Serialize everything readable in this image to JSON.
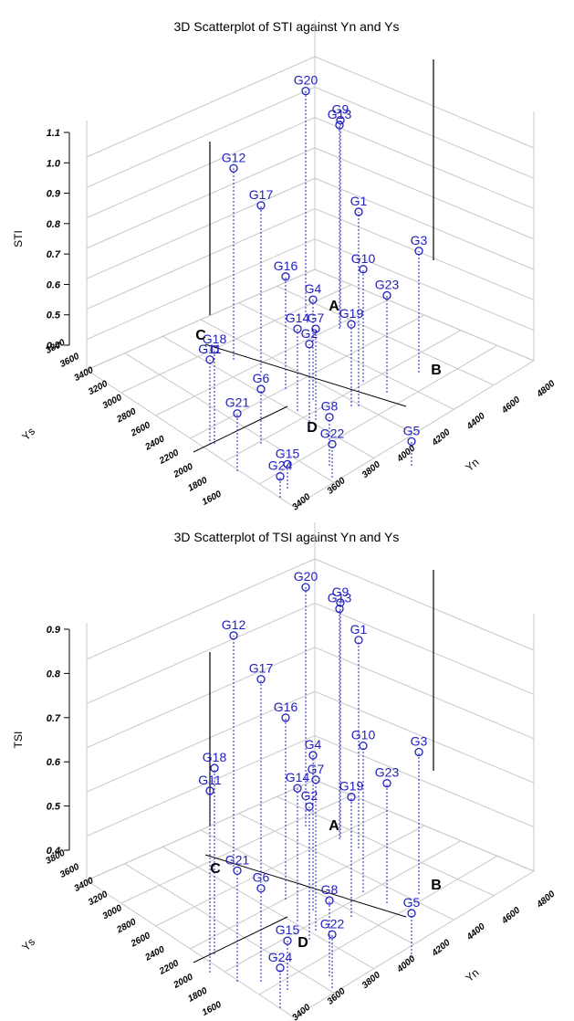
{
  "colors": {
    "point": "#2020c0",
    "grid": "#c8c8c8",
    "axis": "#000000",
    "text": "#000000"
  },
  "chart_data": [
    {
      "type": "scatter3d",
      "title": "3D Scatterplot of STI against Yn and Ys",
      "zlabel": "STI",
      "xlabel": "Yn",
      "ylabel": "Ys",
      "zticks": [
        "0.4",
        "0.5",
        "0.6",
        "0.7",
        "0.8",
        "0.9",
        "1.0",
        "1.1"
      ],
      "xticks": [
        "3400",
        "3600",
        "3800",
        "4000",
        "4200",
        "4400",
        "4600",
        "4800"
      ],
      "yticks": [
        "1600",
        "1800",
        "2000",
        "2200",
        "2400",
        "2600",
        "2800",
        "3000",
        "3200",
        "3400",
        "3600",
        "3800"
      ],
      "zlim": [
        0.4,
        1.1
      ],
      "xlim": [
        3400,
        4800
      ],
      "ylim": [
        1600,
        3800
      ],
      "quadrant_labels": [
        "A",
        "B",
        "C",
        "D"
      ],
      "points": [
        {
          "label": "G1",
          "z": 0.98
        },
        {
          "label": "G2",
          "z": 0.62
        },
        {
          "label": "G3",
          "z": 0.74
        },
        {
          "label": "G4",
          "z": 0.67
        },
        {
          "label": "G5",
          "z": 0.42
        },
        {
          "label": "G6",
          "z": 0.52
        },
        {
          "label": "G7",
          "z": 0.64
        },
        {
          "label": "G8",
          "z": 0.5
        },
        {
          "label": "G9",
          "z": 1.02
        },
        {
          "label": "G10",
          "z": 0.71
        },
        {
          "label": "G11",
          "z": 0.62
        },
        {
          "label": "G12",
          "z": 0.97
        },
        {
          "label": "G13",
          "z": 1.01
        },
        {
          "label": "G14",
          "z": 0.61
        },
        {
          "label": "G15",
          "z": 0.42
        },
        {
          "label": "G16",
          "z": 0.71
        },
        {
          "label": "G17",
          "z": 0.89
        },
        {
          "label": "G18",
          "z": 0.65
        },
        {
          "label": "G19",
          "z": 0.61
        },
        {
          "label": "G20",
          "z": 1.08
        },
        {
          "label": "G21",
          "z": 0.53
        },
        {
          "label": "G22",
          "z": 0.45
        },
        {
          "label": "G23",
          "z": 0.66
        },
        {
          "label": "G24",
          "z": 0.41
        }
      ]
    },
    {
      "type": "scatter3d",
      "title": "3D Scatterplot of TSI against Yn and Ys",
      "zlabel": "TSI",
      "xlabel": "Yn",
      "ylabel": "Ys",
      "zticks": [
        "0.4",
        "0.5",
        "0.6",
        "0.7",
        "0.8",
        "0.9"
      ],
      "xticks": [
        "3400",
        "3600",
        "3800",
        "4000",
        "4200",
        "4400",
        "4600",
        "4800"
      ],
      "yticks": [
        "1600",
        "1800",
        "2000",
        "2200",
        "2400",
        "2600",
        "2800",
        "3000",
        "3200",
        "3400",
        "3600",
        "3800"
      ],
      "zlim": [
        0.4,
        0.9
      ],
      "xlim": [
        3400,
        4800
      ],
      "ylim": [
        1600,
        3800
      ],
      "quadrant_labels": [
        "A",
        "B",
        "C",
        "D"
      ],
      "points": [
        {
          "label": "G1",
          "z": 0.83
        },
        {
          "label": "G2",
          "z": 0.66
        },
        {
          "label": "G3",
          "z": 0.68
        },
        {
          "label": "G4",
          "z": 0.71
        },
        {
          "label": "G5",
          "z": 0.46
        },
        {
          "label": "G6",
          "z": 0.57
        },
        {
          "label": "G7",
          "z": 0.7
        },
        {
          "label": "G8",
          "z": 0.53
        },
        {
          "label": "G9",
          "z": 0.89
        },
        {
          "label": "G10",
          "z": 0.69
        },
        {
          "label": "G11",
          "z": 0.77
        },
        {
          "label": "G12",
          "z": 0.89
        },
        {
          "label": "G13",
          "z": 0.88
        },
        {
          "label": "G14",
          "z": 0.66
        },
        {
          "label": "G15",
          "z": 0.47
        },
        {
          "label": "G16",
          "z": 0.77
        },
        {
          "label": "G17",
          "z": 0.82
        },
        {
          "label": "G18",
          "z": 0.78
        },
        {
          "label": "G19",
          "z": 0.63
        },
        {
          "label": "G20",
          "z": 0.9
        },
        {
          "label": "G21",
          "z": 0.61
        },
        {
          "label": "G22",
          "z": 0.48
        },
        {
          "label": "G23",
          "z": 0.63
        },
        {
          "label": "G24",
          "z": 0.45
        }
      ]
    }
  ]
}
